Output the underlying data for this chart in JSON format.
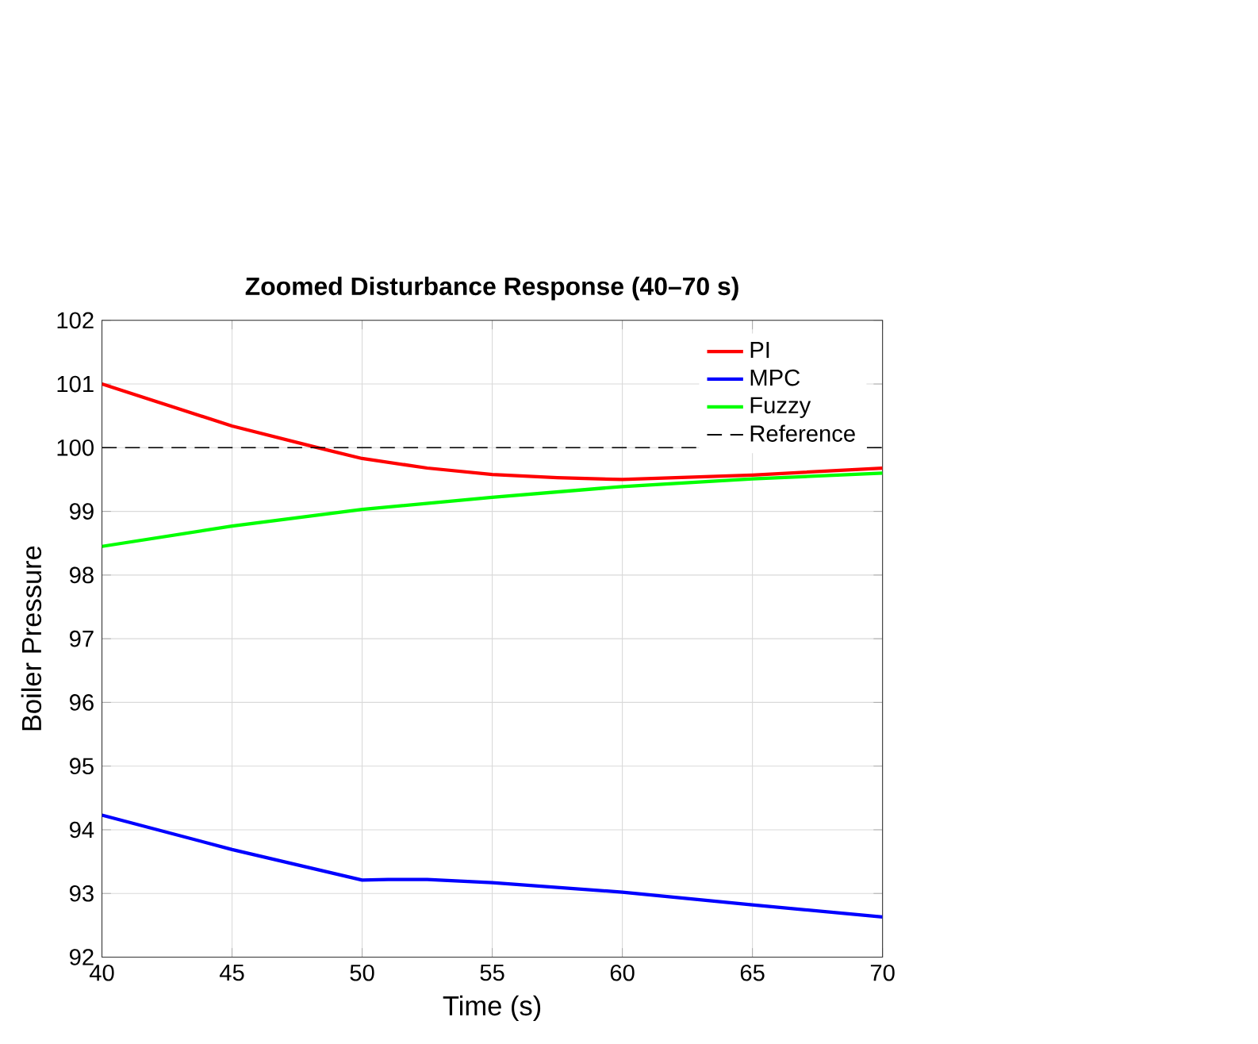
{
  "chart_data": {
    "type": "line",
    "title": "Zoomed Disturbance Response (40–70 s)",
    "xlabel": "Time (s)",
    "ylabel": "Boiler Pressure",
    "xlim": [
      40,
      70
    ],
    "ylim": [
      92,
      102
    ],
    "xticks": [
      40,
      45,
      50,
      55,
      60,
      65,
      70
    ],
    "yticks": [
      92,
      93,
      94,
      95,
      96,
      97,
      98,
      99,
      100,
      101,
      102
    ],
    "grid": true,
    "legend": "top right",
    "series": [
      {
        "name": "PI",
        "color": "#ff0000",
        "x": [
          40,
          42.5,
          45,
          48.3,
          50,
          52.5,
          55,
          57.5,
          60,
          65,
          70
        ],
        "values": [
          101.0,
          100.67,
          100.34,
          100.0,
          99.83,
          99.68,
          99.58,
          99.53,
          99.5,
          99.57,
          99.68
        ]
      },
      {
        "name": "MPC",
        "color": "#0000ff",
        "x": [
          40,
          45,
          50,
          51,
          52.5,
          55,
          60,
          65,
          70
        ],
        "values": [
          94.23,
          93.69,
          93.21,
          93.22,
          93.22,
          93.17,
          93.02,
          92.82,
          92.63
        ]
      },
      {
        "name": "Fuzzy",
        "color": "#00ff00",
        "x": [
          40,
          45,
          50,
          55,
          60,
          65,
          70
        ],
        "values": [
          98.45,
          98.77,
          99.03,
          99.22,
          99.39,
          99.51,
          99.6
        ]
      },
      {
        "name": "Reference",
        "color": "#000000",
        "line_style": "dashed",
        "x": [
          40,
          70
        ],
        "values": [
          100,
          100
        ]
      }
    ]
  }
}
